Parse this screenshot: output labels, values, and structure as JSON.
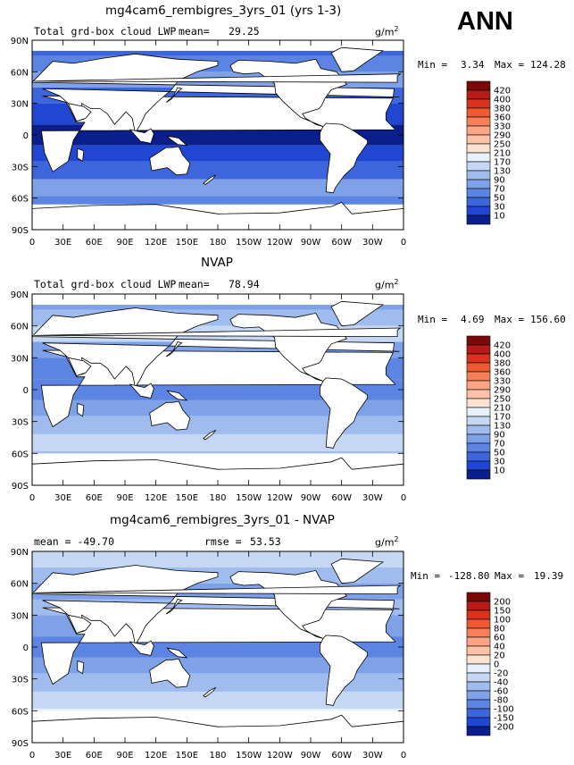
{
  "season": "ANN",
  "colors": {
    "land": "#ffffff",
    "frame": "#000000"
  },
  "chart_data": [
    {
      "type": "heatmap",
      "title": "mg4cam6_rembigres_3yrs_01 (yrs 1-3)",
      "left_label": "Total grd-box cloud LWP",
      "mean_label": "mean=",
      "mean_value": "29.25",
      "units_base": "g/m",
      "units_exp": "2",
      "min_label": "Min =",
      "min_value": "3.34",
      "max_label": "Max =",
      "max_value": "124.28",
      "x_ticks": [
        "0",
        "30E",
        "60E",
        "90E",
        "120E",
        "150E",
        "180",
        "150W",
        "120W",
        "90W",
        "60W",
        "30W",
        "0"
      ],
      "y_ticks": [
        "90N",
        "60N",
        "30N",
        "0",
        "30S",
        "60S",
        "90S"
      ],
      "colorbar": {
        "labels": [
          "420",
          "400",
          "380",
          "360",
          "330",
          "290",
          "250",
          "210",
          "170",
          "130",
          "90",
          "70",
          "50",
          "30",
          "10"
        ],
        "colors": [
          "#7a0a0a",
          "#b81a1a",
          "#d9331f",
          "#ef5a35",
          "#f77f5a",
          "#fca483",
          "#fdc3a9",
          "#fde2d2",
          "#e8f0fc",
          "#c6d7f4",
          "#a0bcee",
          "#7ea1e8",
          "#5c84e2",
          "#3d66dc",
          "#2046d2",
          "#0b1f8c"
        ],
        "min": 10,
        "max": 420
      },
      "field_level": "low"
    },
    {
      "type": "heatmap",
      "title": "NVAP",
      "left_label": "Total grd-box cloud LWP",
      "mean_label": "mean=",
      "mean_value": "78.94",
      "units_base": "g/m",
      "units_exp": "2",
      "min_label": "Min =",
      "min_value": "4.69",
      "max_label": "Max =",
      "max_value": "156.60",
      "x_ticks": [
        "0",
        "30E",
        "60E",
        "90E",
        "120E",
        "150E",
        "180",
        "150W",
        "120W",
        "90W",
        "60W",
        "30W",
        "0"
      ],
      "y_ticks": [
        "90N",
        "60N",
        "30N",
        "0",
        "30S",
        "60S",
        "90S"
      ],
      "colorbar": {
        "labels": [
          "420",
          "400",
          "380",
          "360",
          "330",
          "290",
          "250",
          "210",
          "170",
          "130",
          "90",
          "70",
          "50",
          "30",
          "10"
        ],
        "colors": [
          "#7a0a0a",
          "#b81a1a",
          "#d9331f",
          "#ef5a35",
          "#f77f5a",
          "#fca483",
          "#fdc3a9",
          "#fde2d2",
          "#e8f0fc",
          "#c6d7f4",
          "#a0bcee",
          "#7ea1e8",
          "#5c84e2",
          "#3d66dc",
          "#2046d2",
          "#0b1f8c"
        ],
        "min": 10,
        "max": 420
      },
      "field_level": "mid"
    },
    {
      "type": "heatmap",
      "title": "mg4cam6_rembigres_3yrs_01 - NVAP",
      "left_label": "mean = -49.70",
      "rmse_label": "rmse =",
      "rmse_value": "53.53",
      "units_base": "g/m",
      "units_exp": "2",
      "min_label": "Min =",
      "min_value": "-128.80",
      "max_label": "Max =",
      "max_value": "19.39",
      "x_ticks": [
        "0",
        "30E",
        "60E",
        "90E",
        "120E",
        "150E",
        "180",
        "150W",
        "120W",
        "90W",
        "60W",
        "30W",
        "0"
      ],
      "y_ticks": [
        "90N",
        "60N",
        "30N",
        "0",
        "30S",
        "60S",
        "90S"
      ],
      "colorbar": {
        "labels": [
          "200",
          "150",
          "100",
          "80",
          "60",
          "40",
          "20",
          "0",
          "-20",
          "-40",
          "-60",
          "-80",
          "-100",
          "-150",
          "-200"
        ],
        "colors": [
          "#7a0a0a",
          "#b81a1a",
          "#d9331f",
          "#ef5a35",
          "#f77f5a",
          "#fca483",
          "#fdc3a9",
          "#fde2d2",
          "#e8f0fc",
          "#c6d7f4",
          "#a0bcee",
          "#7ea1e8",
          "#5c84e2",
          "#3d66dc",
          "#2046d2",
          "#0b1f8c"
        ],
        "min": -200,
        "max": 200
      },
      "field_level": "diff"
    }
  ]
}
